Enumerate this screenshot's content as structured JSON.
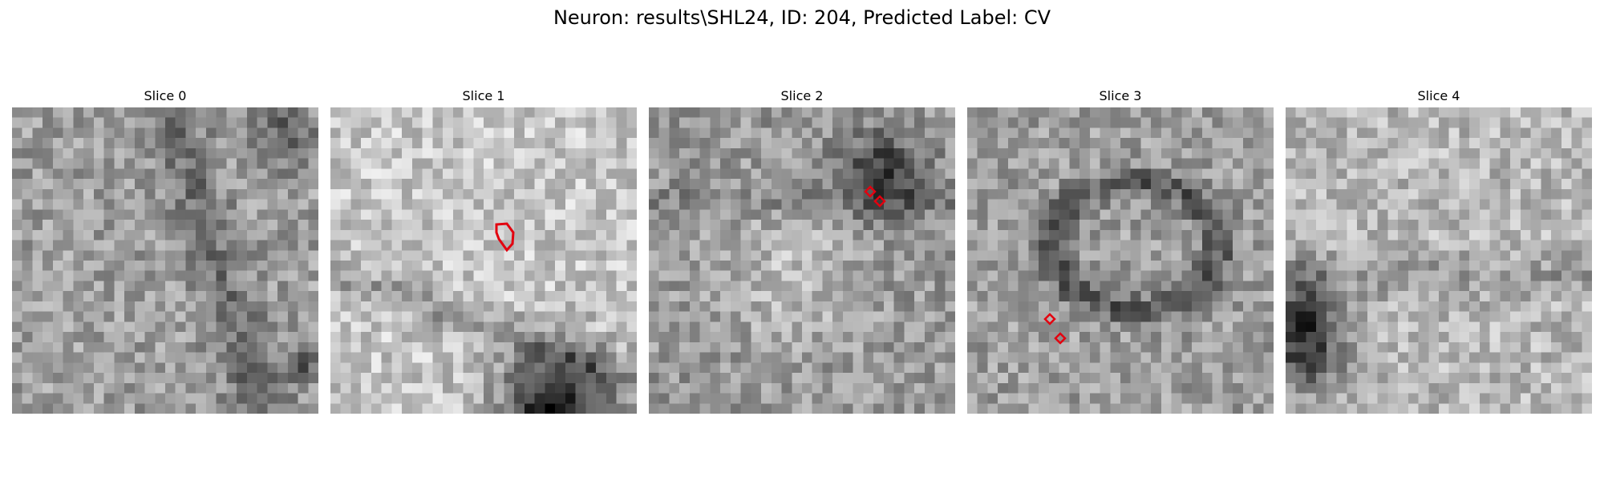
{
  "figure": {
    "title": "Neuron: results\\SHL24, ID: 204, Predicted Label: CV"
  },
  "panels": [
    {
      "title": "Slice 0",
      "seed": 11,
      "contours": []
    },
    {
      "title": "Slice 1",
      "seed": 23,
      "contours": [
        "outline"
      ]
    },
    {
      "title": "Slice 2",
      "seed": 37,
      "contours": [
        "marker",
        "marker"
      ]
    },
    {
      "title": "Slice 3",
      "seed": 53,
      "contours": [
        "marker",
        "marker"
      ]
    },
    {
      "title": "Slice 4",
      "seed": 71,
      "contours": []
    }
  ],
  "colors": {
    "contour": "#e3000f",
    "background": "#ffffff"
  },
  "image": {
    "grid": 30,
    "colormap": "gray"
  }
}
